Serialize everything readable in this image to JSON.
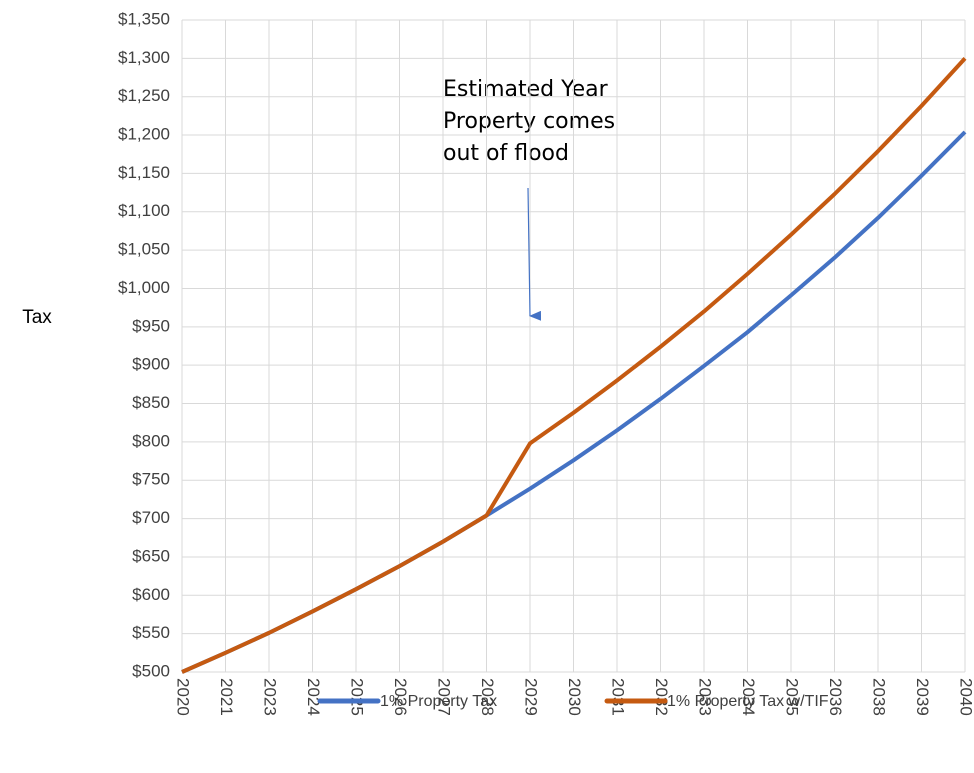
{
  "chart_data": {
    "type": "line",
    "ylabel": "Tax",
    "annotation": [
      "Estimated Year",
      "Property comes",
      "out of flood"
    ],
    "categories": [
      "2020",
      "2021",
      "2023",
      "2024",
      "2025",
      "2026",
      "2027",
      "2028",
      "2029",
      "2030",
      "2031",
      "2032",
      "2033",
      "2034",
      "2035",
      "2036",
      "2038",
      "2039",
      "2040"
    ],
    "series": [
      {
        "name": "1% Property Tax",
        "color": "#4472c4",
        "values": [
          500,
          525,
          551,
          579,
          608,
          638,
          670,
          704,
          739,
          776,
          815,
          856,
          899,
          943,
          991,
          1040,
          1092,
          1147,
          1204
        ]
      },
      {
        "name": "1% Property Tax w/TIF",
        "color": "#c55a11",
        "values": [
          500,
          525,
          551,
          579,
          608,
          638,
          670,
          704,
          798,
          838,
          880,
          924,
          970,
          1019,
          1070,
          1123,
          1179,
          1238,
          1300
        ]
      }
    ],
    "ylim": [
      500,
      1350
    ],
    "yticks": [
      {
        "value": 500,
        "label": "$500"
      },
      {
        "value": 550,
        "label": "$550"
      },
      {
        "value": 600,
        "label": "$600"
      },
      {
        "value": 650,
        "label": "$650"
      },
      {
        "value": 700,
        "label": "$700"
      },
      {
        "value": 750,
        "label": "$750"
      },
      {
        "value": 800,
        "label": "$800"
      },
      {
        "value": 850,
        "label": "$850"
      },
      {
        "value": 900,
        "label": "$900"
      },
      {
        "value": 950,
        "label": "$950"
      },
      {
        "value": 1000,
        "label": "$1,000"
      },
      {
        "value": 1050,
        "label": "$1,050"
      },
      {
        "value": 1100,
        "label": "$1,100"
      },
      {
        "value": 1150,
        "label": "$1,150"
      },
      {
        "value": 1200,
        "label": "$1,200"
      },
      {
        "value": 1250,
        "label": "$1,250"
      },
      {
        "value": 1300,
        "label": "$1,300"
      },
      {
        "value": 1350,
        "label": "$1,350"
      }
    ],
    "grid": true,
    "legend": "bottom"
  }
}
